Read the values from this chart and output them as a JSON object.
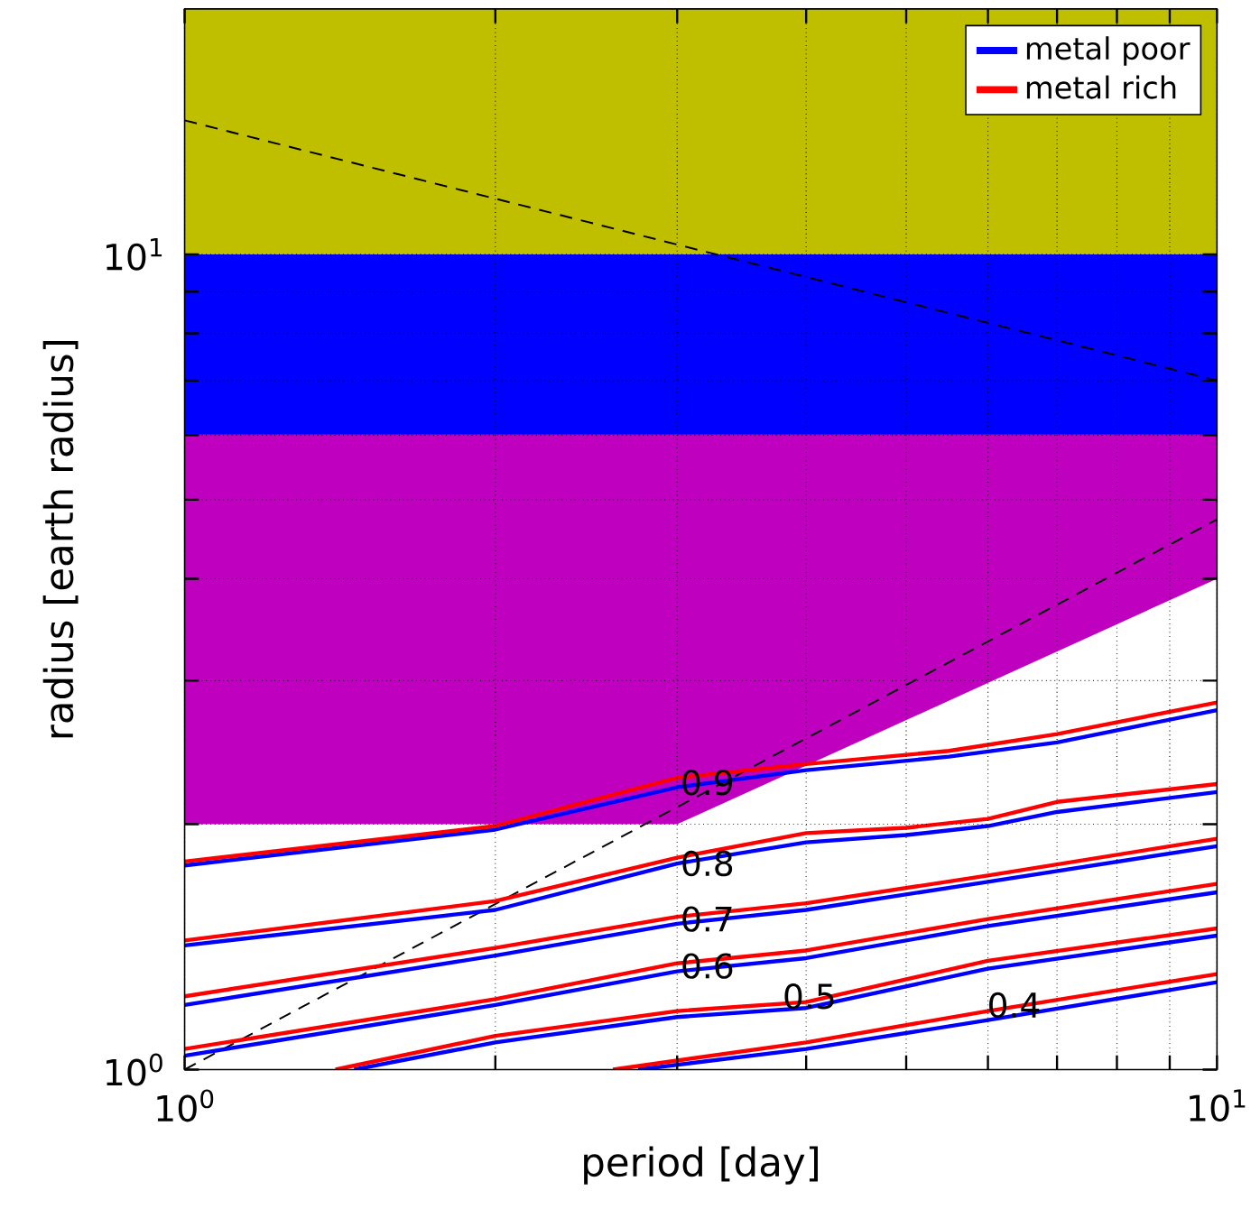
{
  "chart_data": {
    "type": "line",
    "xlabel": "period [day]",
    "ylabel": "radius [earth radius]",
    "log": "xy",
    "grid": true,
    "legend": "top right",
    "marker": "none",
    "xlim": [
      1,
      10
    ],
    "ylim": [
      1,
      20
    ],
    "xticks": [
      {
        "value": 1,
        "label": "10$^{0}$"
      },
      {
        "value": 2,
        "label": null
      },
      {
        "value": 3,
        "label": null
      },
      {
        "value": 4,
        "label": null
      },
      {
        "value": 5,
        "label": null
      },
      {
        "value": 6,
        "label": null
      },
      {
        "value": 7,
        "label": null
      },
      {
        "value": 8,
        "label": null
      },
      {
        "value": 9,
        "label": null
      },
      {
        "value": 10,
        "label": "10$^{1}$"
      }
    ],
    "yticks": [
      {
        "value": 1,
        "label": "10$^{0}$"
      },
      {
        "value": 2,
        "label": null
      },
      {
        "value": 3,
        "label": null
      },
      {
        "value": 4,
        "label": null
      },
      {
        "value": 5,
        "label": null
      },
      {
        "value": 6,
        "label": null
      },
      {
        "value": 7,
        "label": null
      },
      {
        "value": 8,
        "label": null
      },
      {
        "value": 9,
        "label": null
      },
      {
        "value": 10,
        "label": "10$^{1}$"
      }
    ],
    "bands": [
      {
        "axis": "y",
        "from": 10,
        "to": 20,
        "color": "#bfbf00"
      },
      {
        "axis": "y",
        "from": 6,
        "to": 10,
        "color": "#0000ff"
      }
    ],
    "series": [
      {
        "type": "line",
        "color": "#bf00bf",
        "x": [
          1,
          3,
          10
        ],
        "values": [
          6,
          6,
          6
        ],
        "lower": [
          2,
          2,
          4
        ],
        "upper": [
          6,
          6,
          6
        ]
      },
      {
        "type": "line",
        "color": "#000000",
        "line_style": "dashed",
        "x": [
          1,
          10
        ],
        "values": [
          14.6,
          7.0
        ]
      },
      {
        "type": "line",
        "color": "#000000",
        "line_style": "dashed",
        "x": [
          1,
          10
        ],
        "values": [
          1.0,
          4.73
        ]
      },
      {
        "name": "metal poor",
        "color": "#0000ff",
        "x": [
          1,
          2,
          3,
          4,
          5.5,
          7,
          10
        ],
        "values": [
          1.78,
          1.97,
          2.22,
          2.33,
          2.42,
          2.52,
          2.76
        ]
      },
      {
        "name": "metal rich",
        "color": "#ff0000",
        "x": [
          1,
          2,
          3,
          4,
          5.5,
          7,
          10
        ],
        "values": [
          1.8,
          1.99,
          2.28,
          2.37,
          2.46,
          2.58,
          2.82
        ]
      },
      {
        "color": "#0000ff",
        "x": [
          1,
          2,
          3,
          4,
          5,
          6,
          7,
          10
        ],
        "values": [
          1.42,
          1.57,
          1.79,
          1.9,
          1.94,
          1.99,
          2.07,
          2.19
        ]
      },
      {
        "color": "#ff0000",
        "x": [
          1,
          2,
          3,
          4,
          5,
          6,
          7,
          10
        ],
        "values": [
          1.44,
          1.61,
          1.82,
          1.95,
          1.98,
          2.03,
          2.13,
          2.24
        ]
      },
      {
        "color": "#0000ff",
        "x": [
          1,
          2,
          3,
          4,
          6,
          10
        ],
        "values": [
          1.2,
          1.38,
          1.51,
          1.57,
          1.7,
          1.88
        ]
      },
      {
        "color": "#ff0000",
        "x": [
          1,
          2,
          3,
          4,
          6,
          10
        ],
        "values": [
          1.23,
          1.41,
          1.54,
          1.6,
          1.73,
          1.92
        ]
      },
      {
        "color": "#0000ff",
        "x": [
          1,
          2,
          3,
          4,
          6,
          10
        ],
        "values": [
          1.04,
          1.2,
          1.32,
          1.37,
          1.5,
          1.65
        ]
      },
      {
        "color": "#ff0000",
        "x": [
          1,
          2,
          3,
          4,
          6,
          10
        ],
        "values": [
          1.06,
          1.22,
          1.35,
          1.4,
          1.53,
          1.69
        ]
      },
      {
        "color": "#0000ff",
        "x": [
          1.46,
          2,
          3,
          4,
          6,
          10
        ],
        "values": [
          1.0,
          1.08,
          1.16,
          1.19,
          1.33,
          1.46
        ]
      },
      {
        "color": "#ff0000",
        "x": [
          1.4,
          2,
          3,
          4,
          6,
          10
        ],
        "values": [
          1.0,
          1.1,
          1.18,
          1.21,
          1.36,
          1.49
        ]
      },
      {
        "color": "#0000ff",
        "x": [
          2.75,
          4,
          6,
          10
        ],
        "values": [
          1.0,
          1.06,
          1.15,
          1.28
        ]
      },
      {
        "color": "#ff0000",
        "x": [
          2.6,
          4,
          6,
          10
        ],
        "values": [
          1.0,
          1.08,
          1.18,
          1.31
        ]
      }
    ],
    "annotations": [
      {
        "text": "0.9",
        "x": 3.21,
        "y": 2.25
      },
      {
        "text": "0.8",
        "x": 3.21,
        "y": 1.79
      },
      {
        "text": "0.7",
        "x": 3.21,
        "y": 1.53
      },
      {
        "text": "0.6",
        "x": 3.21,
        "y": 1.34
      },
      {
        "text": "0.5",
        "x": 4.03,
        "y": 1.23
      },
      {
        "text": "0.4",
        "x": 6.36,
        "y": 1.2
      }
    ]
  }
}
